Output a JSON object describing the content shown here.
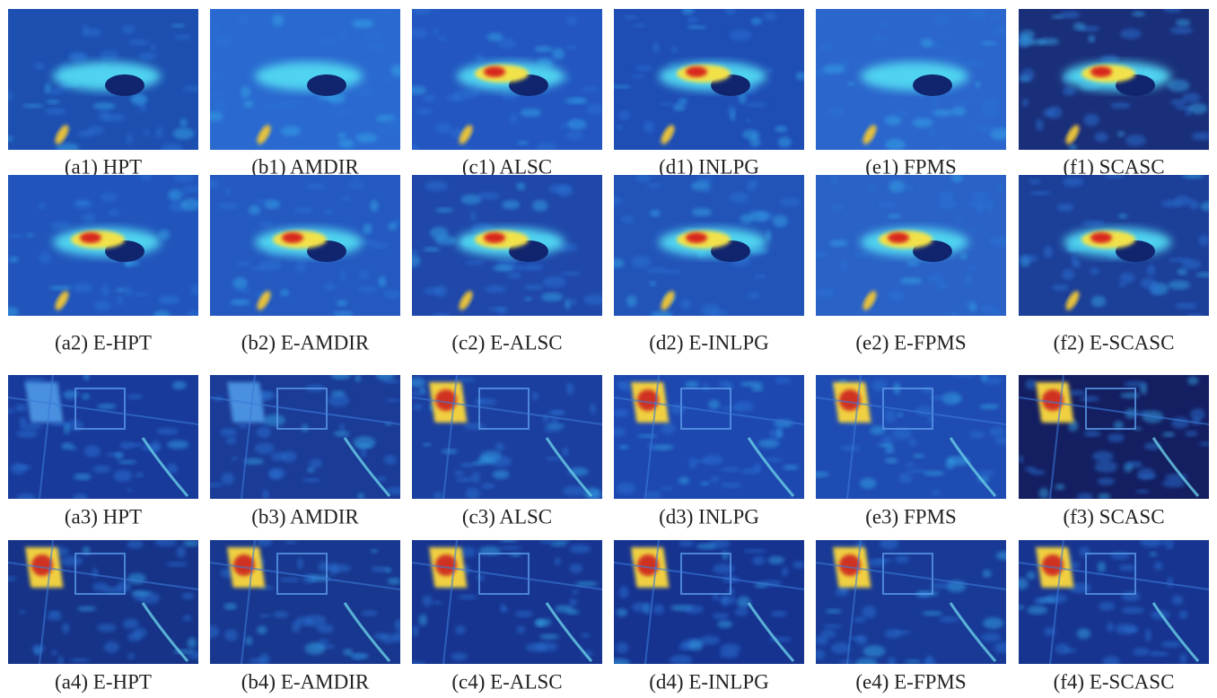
{
  "figure": {
    "rows": [
      [
        "(a1) HPT",
        "(b1) AMDIR",
        "(c1) ALSC",
        "(d1) INLPG",
        "(e1) FPMS",
        "(f1) SCASC"
      ],
      [
        "(a2) E-HPT",
        "(b2) E-AMDIR",
        "(c2) E-ALSC",
        "(d2) E-INLPG",
        "(e2) E-FPMS",
        "(f2) E-SCASC"
      ],
      [
        "(a3) HPT",
        "(b3) AMDIR",
        "(c3) ALSC",
        "(d3) INLPG",
        "(e3) FPMS",
        "(f3) SCASC"
      ],
      [
        "(a4) E-HPT",
        "(b4) E-AMDIR",
        "(c4) E-ALSC",
        "(d4) E-INLPG",
        "(e4) E-FPMS",
        "(f4) E-SCASC"
      ]
    ]
  }
}
